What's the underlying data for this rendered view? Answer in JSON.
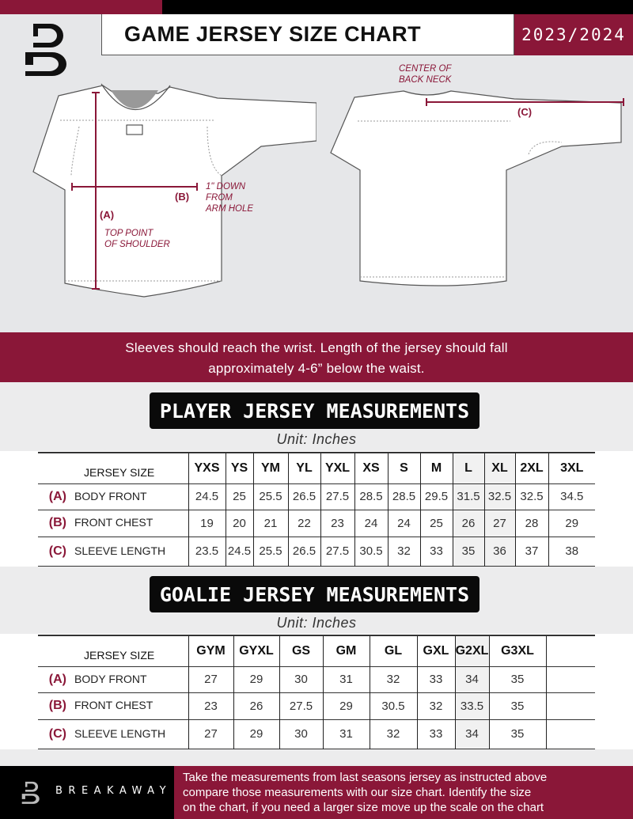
{
  "header": {
    "title": "GAME JERSEY SIZE CHART",
    "season": "2023/2024",
    "logo_letter": "B"
  },
  "diagram": {
    "center_back_neck": [
      "CENTER OF",
      "BACK NECK"
    ],
    "marker_a": "(A)",
    "marker_b": "(B)",
    "marker_c": "(C)",
    "down_from_arm_hole": [
      "1\" DOWN",
      "FROM",
      "ARM HOLE"
    ],
    "top_point_shoulder": [
      "TOP POINT",
      "OF SHOULDER"
    ]
  },
  "banner": {
    "lines": [
      "Sleeves should reach the wrist. Length of the jersey should fall",
      "approximately 4-6” below the waist."
    ]
  },
  "player": {
    "title": "PLAYER JERSEY MEASUREMENTS",
    "unit": "Unit: Inches",
    "size_header": "JERSEY SIZE",
    "sizes": [
      "YXS",
      "YS",
      "YM",
      "YL",
      "YXL",
      "XS",
      "S",
      "M",
      "L",
      "XL",
      "2XL",
      "3XL"
    ],
    "rows": [
      {
        "marker": "(A)",
        "label": "BODY FRONT",
        "values": [
          "24.5",
          "25",
          "25.5",
          "26.5",
          "27.5",
          "28.5",
          "28.5",
          "29.5",
          "31.5",
          "32.5",
          "32.5",
          "34.5"
        ]
      },
      {
        "marker": "(B)",
        "label": "FRONT CHEST",
        "values": [
          "19",
          "20",
          "21",
          "22",
          "23",
          "24",
          "24",
          "25",
          "26",
          "27",
          "28",
          "29"
        ]
      },
      {
        "marker": "(C)",
        "label": "SLEEVE LENGTH",
        "values": [
          "23.5",
          "24.5",
          "25.5",
          "26.5",
          "27.5",
          "30.5",
          "32",
          "33",
          "35",
          "36",
          "37",
          "38"
        ]
      }
    ]
  },
  "goalie": {
    "title": "GOALIE JERSEY MEASUREMENTS",
    "unit": "Unit: Inches",
    "size_header": "JERSEY SIZE",
    "sizes": [
      "GYM",
      "GYXL",
      "GS",
      "GM",
      "GL",
      "GXL",
      "G2XL",
      "G3XL",
      ""
    ],
    "rows": [
      {
        "marker": "(A)",
        "label": "BODY FRONT",
        "values": [
          "27",
          "29",
          "30",
          "31",
          "32",
          "33",
          "34",
          "35",
          ""
        ]
      },
      {
        "marker": "(B)",
        "label": "FRONT CHEST",
        "values": [
          "23",
          "26",
          "27.5",
          "29",
          "30.5",
          "32",
          "33.5",
          "35",
          ""
        ]
      },
      {
        "marker": "(C)",
        "label": "SLEEVE LENGTH",
        "values": [
          "27",
          "29",
          "30",
          "31",
          "32",
          "33",
          "34",
          "35",
          ""
        ]
      }
    ]
  },
  "footer": {
    "brand": "BREAKAWAY",
    "lines": [
      "Take the measurements from last seasons jersey as instructed above",
      "compare those measurements  with our size chart. Identify the size",
      "on the chart, if you need a larger size move up the scale on the chart"
    ]
  },
  "colors": {
    "accent": "#8a1738",
    "dark": "#000000",
    "background": "#e6e7e9"
  }
}
